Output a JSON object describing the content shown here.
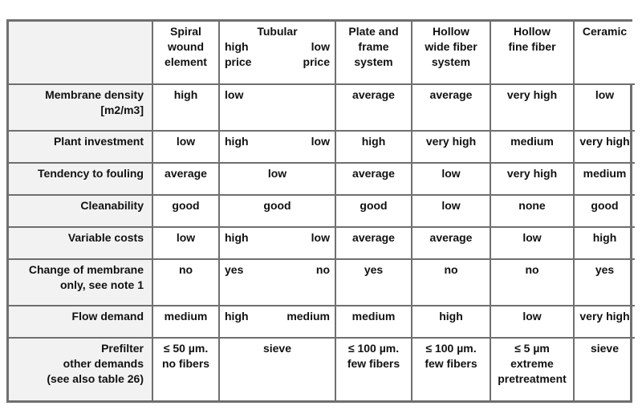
{
  "header": {
    "spiral": "Spiral\nwound\nelement",
    "tubular": "Tubular",
    "tubular_high": "high\nprice",
    "tubular_low": "low\nprice",
    "plate": "Plate and\nframe\nsystem",
    "hollow_wide": "Hollow\nwide fiber\nsystem",
    "hollow_fine": "Hollow\nfine fiber",
    "ceramic": "Ceramic"
  },
  "rows": [
    {
      "label": "Membrane density\n[m2/m3]",
      "spiral": "high",
      "tub_high": "low",
      "tub_low": "",
      "plate": "average",
      "hwide": "average",
      "hfine": "very high",
      "ceramic": "low"
    },
    {
      "label": "Plant investment",
      "spiral": "low",
      "tub_high": "high",
      "tub_low": "low",
      "plate": "high",
      "hwide": "very high",
      "hfine": "medium",
      "ceramic": "very high"
    },
    {
      "label": "Tendency to fouling",
      "spiral": "average",
      "tubular": "low",
      "plate": "average",
      "hwide": "low",
      "hfine": "very high",
      "ceramic": "medium"
    },
    {
      "label": "Cleanability",
      "spiral": "good",
      "tubular": "good",
      "plate": "good",
      "hwide": "low",
      "hfine": "none",
      "ceramic": "good"
    },
    {
      "label": "Variable costs",
      "spiral": "low",
      "tub_high": "high",
      "tub_low": "low",
      "plate": "average",
      "hwide": "average",
      "hfine": "low",
      "ceramic": "high"
    },
    {
      "label": "Change of membrane\nonly, see note 1",
      "spiral": "no",
      "tub_high": "yes",
      "tub_low": "no",
      "plate": "yes",
      "hwide": "no",
      "hfine": "no",
      "ceramic": "yes"
    },
    {
      "label": "Flow demand",
      "spiral": "medium",
      "tub_high": "high",
      "tub_low": "medium",
      "plate": "medium",
      "hwide": "high",
      "hfine": "low",
      "ceramic": "very high"
    },
    {
      "label": "Prefilter\nother demands\n(see also table 26)",
      "spiral": "≤ 50 µm.\nno fibers",
      "tubular": "sieve",
      "plate": "≤ 100 µm.\nfew fibers",
      "hwide": "≤ 100 µm.\nfew fibers",
      "hfine": "≤ 5 µm\nextreme\npretreatment",
      "ceramic": "sieve"
    }
  ]
}
